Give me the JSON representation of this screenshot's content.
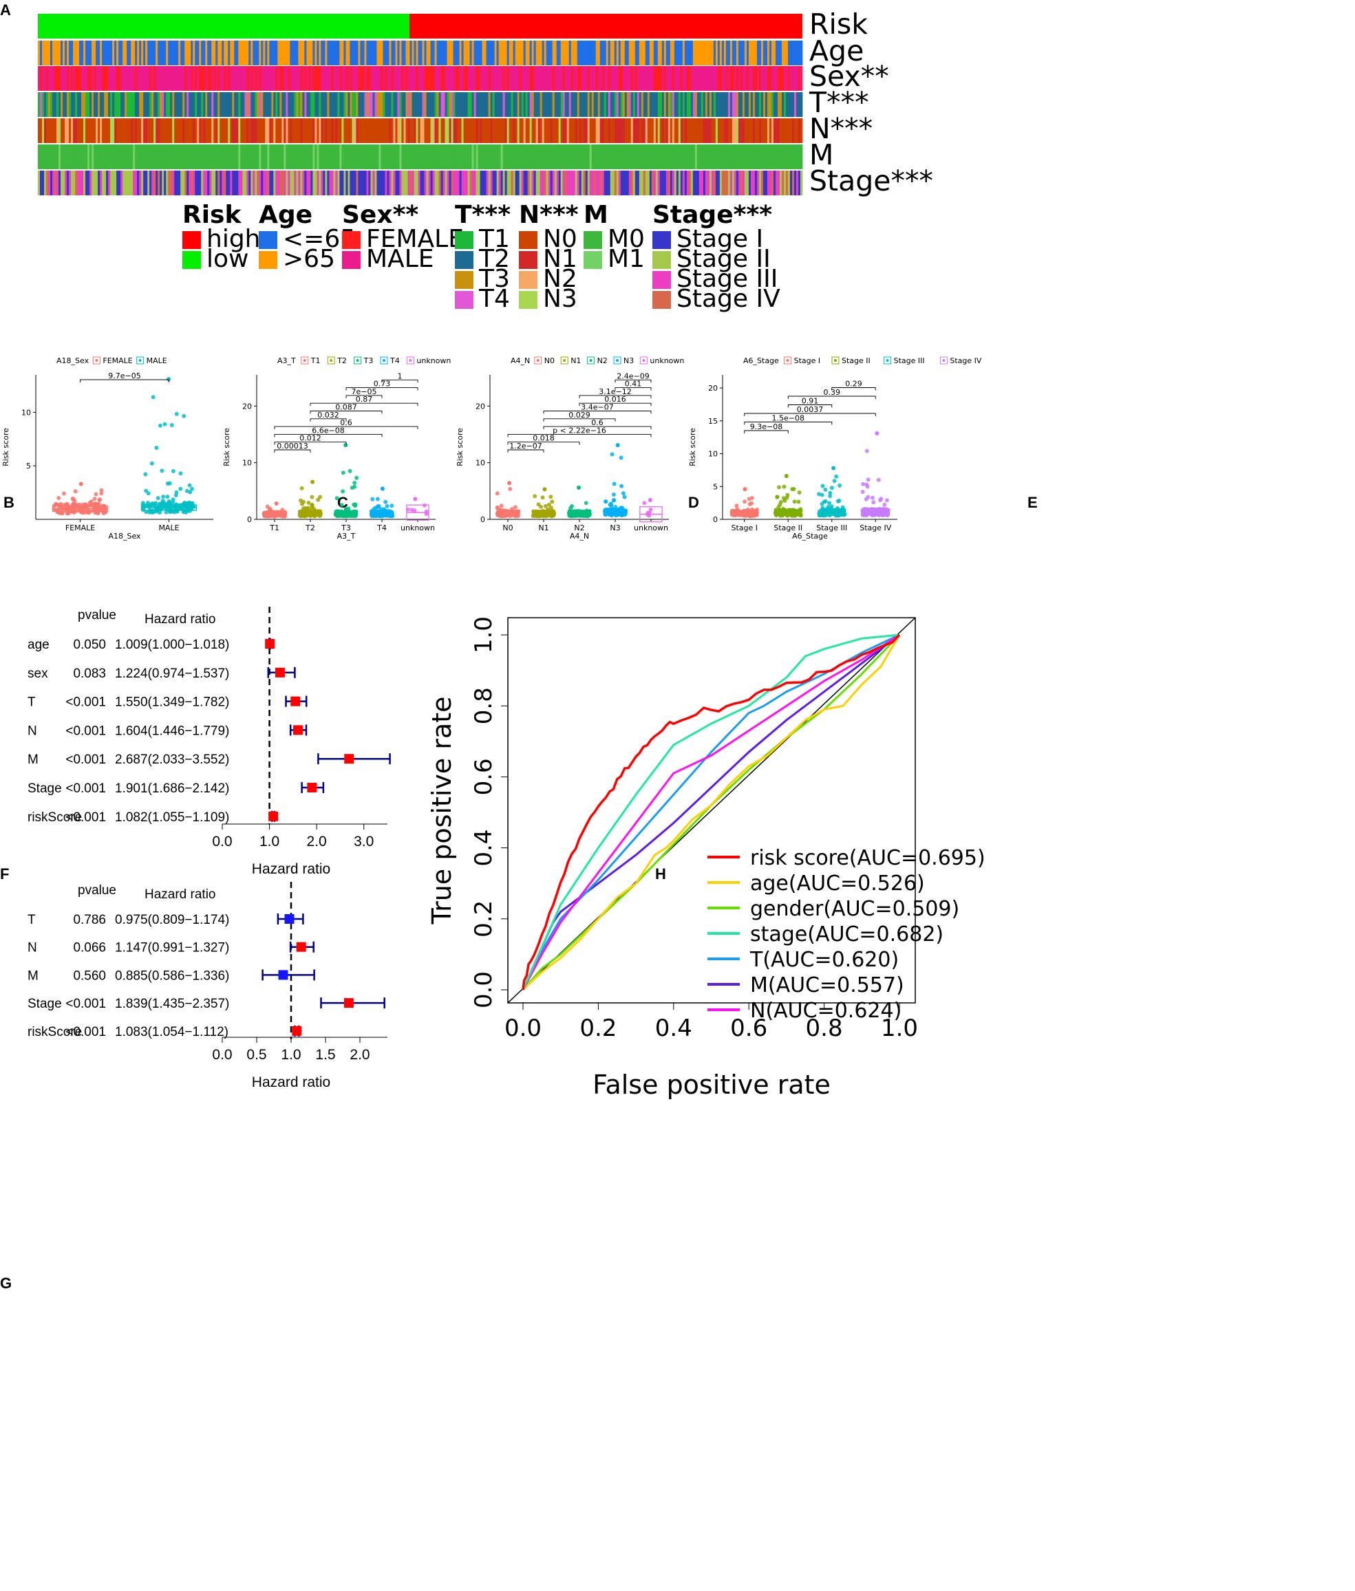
{
  "panels": {
    "A": "A",
    "B": "B",
    "C": "C",
    "D": "D",
    "E": "E",
    "F": "F",
    "G": "G",
    "H": "H"
  },
  "chart_data": [
    {
      "type": "heatmap",
      "panel": "A",
      "rows": [
        {
          "label": "Risk",
          "categories": [
            "high",
            "low"
          ]
        },
        {
          "label": "Age",
          "categories": [
            "<=65",
            ">65"
          ]
        },
        {
          "label": "Sex**",
          "categories": [
            "FEMALE",
            "MALE"
          ]
        },
        {
          "label": "T***",
          "categories": [
            "T1",
            "T2",
            "T3",
            "T4"
          ]
        },
        {
          "label": "N***",
          "categories": [
            "N0",
            "N1",
            "N2",
            "N3"
          ]
        },
        {
          "label": "M",
          "categories": [
            "M0",
            "M1"
          ]
        },
        {
          "label": "Stage***",
          "categories": [
            "Stage I",
            "Stage II",
            "Stage III",
            "Stage IV"
          ]
        }
      ],
      "low_fraction": 0.486,
      "legend": [
        {
          "title": "Risk",
          "items": [
            {
              "label": "high",
              "color": "#ff0000"
            },
            {
              "label": "low",
              "color": "#00ee00"
            }
          ]
        },
        {
          "title": "Age",
          "items": [
            {
              "label": "<=65",
              "color": "#1e6fe8"
            },
            {
              "label": ">65",
              "color": "#ff9a00"
            }
          ]
        },
        {
          "title": "Sex**",
          "items": [
            {
              "label": "FEMALE",
              "color": "#ff1f1f"
            },
            {
              "label": "MALE",
              "color": "#ec1a8a"
            }
          ]
        },
        {
          "title": "T***",
          "items": [
            {
              "label": "T1",
              "color": "#1db83a"
            },
            {
              "label": "T2",
              "color": "#1d6a92"
            },
            {
              "label": "T3",
              "color": "#c8920e"
            },
            {
              "label": "T4",
              "color": "#e356d8"
            }
          ]
        },
        {
          "title": "N***",
          "items": [
            {
              "label": "N0",
              "color": "#cc4400"
            },
            {
              "label": "N1",
              "color": "#d22828"
            },
            {
              "label": "N2",
              "color": "#f8a866"
            },
            {
              "label": "N3",
              "color": "#a8d850"
            }
          ]
        },
        {
          "title": "M",
          "items": [
            {
              "label": "M0",
              "color": "#3db83d"
            },
            {
              "label": "M1",
              "color": "#73d266"
            }
          ]
        },
        {
          "title": "Stage***",
          "items": [
            {
              "label": "Stage I",
              "color": "#3636c8"
            },
            {
              "label": "Stage II",
              "color": "#a4c84a"
            },
            {
              "label": "Stage III",
              "color": "#ec3ec0"
            },
            {
              "label": "Stage IV",
              "color": "#d8684c"
            }
          ]
        }
      ]
    },
    {
      "type": "box",
      "panel": "B",
      "legend_title": "A18_Sex",
      "categories": [
        "FEMALE",
        "MALE"
      ],
      "colors": [
        "#f8766d",
        "#00bfc4"
      ],
      "xlabel": "A18_Sex",
      "ylabel": "Risk score",
      "ylim": [
        0,
        13.5
      ],
      "yticks": [
        5,
        10
      ],
      "medians": [
        1.0,
        1.1
      ],
      "max_points": [
        3.3,
        13.1
      ],
      "comparisons": [
        {
          "from": 0,
          "to": 1,
          "p": "9.7e−05"
        }
      ]
    },
    {
      "type": "box",
      "panel": "C",
      "legend_title": "A3_T",
      "categories": [
        "T1",
        "T2",
        "T3",
        "T4",
        "unknown"
      ],
      "colors": [
        "#f8766d",
        "#a3a500",
        "#00bf7d",
        "#00b0f6",
        "#e76bf3"
      ],
      "xlabel": "A3_T",
      "ylabel": "Risk score",
      "ylim": [
        0,
        25.5
      ],
      "yticks": [
        0,
        10,
        20
      ],
      "medians": [
        0.9,
        1.0,
        1.0,
        1.0,
        1.2
      ],
      "max_points": [
        2.8,
        6.6,
        13.1,
        5.4,
        3.6
      ],
      "comparisons": [
        {
          "from": 0,
          "to": 1,
          "p": "0.00013"
        },
        {
          "from": 0,
          "to": 2,
          "p": "0.012"
        },
        {
          "from": 0,
          "to": 3,
          "p": "6.6e−08"
        },
        {
          "from": 0,
          "to": 4,
          "p": "0.6"
        },
        {
          "from": 1,
          "to": 2,
          "p": "0.032"
        },
        {
          "from": 1,
          "to": 3,
          "p": "0.087"
        },
        {
          "from": 1,
          "to": 4,
          "p": "0.87"
        },
        {
          "from": 2,
          "to": 3,
          "p": "7e−05"
        },
        {
          "from": 2,
          "to": 4,
          "p": "0.73"
        },
        {
          "from": 3,
          "to": 4,
          "p": "1"
        }
      ]
    },
    {
      "type": "box",
      "panel": "D",
      "legend_title": "A4_N",
      "categories": [
        "N0",
        "N1",
        "N2",
        "N3",
        "unknown"
      ],
      "colors": [
        "#f8766d",
        "#a3a500",
        "#00bf7d",
        "#00b0f6",
        "#e76bf3"
      ],
      "xlabel": "A4_N",
      "ylabel": "Risk score",
      "ylim": [
        0,
        25.5
      ],
      "yticks": [
        0,
        10,
        20
      ],
      "medians": [
        1.0,
        1.0,
        1.0,
        1.2,
        0.9
      ],
      "max_points": [
        6.4,
        5.3,
        5.6,
        13.1,
        3.4
      ],
      "comparisons": [
        {
          "from": 0,
          "to": 1,
          "p": "1.2e−07"
        },
        {
          "from": 0,
          "to": 2,
          "p": "0.018"
        },
        {
          "from": 0,
          "to": 4,
          "p": "p < 2.22e−16"
        },
        {
          "from": 1,
          "to": 4,
          "p": "0.6"
        },
        {
          "from": 1,
          "to": 3,
          "p": "0.029"
        },
        {
          "from": 1,
          "to": 4,
          "p": "3.4e−07"
        },
        {
          "from": 2,
          "to": 4,
          "p": "0.016"
        },
        {
          "from": 2,
          "to": 4,
          "p": "3.1e−12"
        },
        {
          "from": 3,
          "to": 4,
          "p": "0.41"
        },
        {
          "from": 3,
          "to": 4,
          "p": "2.4e−09"
        }
      ]
    },
    {
      "type": "box",
      "panel": "E",
      "legend_title": "A6_Stage",
      "categories": [
        "Stage I",
        "Stage II",
        "Stage III",
        "Stage IV"
      ],
      "colors": [
        "#f8766d",
        "#7cae00",
        "#00bfc4",
        "#c77cff"
      ],
      "xlabel": "A6_Stage",
      "ylabel": "Risk score",
      "ylim": [
        0,
        22
      ],
      "yticks": [
        0,
        5,
        10,
        15,
        20
      ],
      "medians": [
        0.9,
        1.0,
        1.0,
        1.1
      ],
      "max_points": [
        4.6,
        6.6,
        7.8,
        13.1
      ],
      "comparisons": [
        {
          "from": 0,
          "to": 1,
          "p": "9.3e−08"
        },
        {
          "from": 0,
          "to": 2,
          "p": "1.5e−08"
        },
        {
          "from": 0,
          "to": 3,
          "p": "0.0037"
        },
        {
          "from": 1,
          "to": 2,
          "p": "0.91"
        },
        {
          "from": 1,
          "to": 3,
          "p": "0.39"
        },
        {
          "from": 2,
          "to": 3,
          "p": "0.29"
        }
      ]
    },
    {
      "type": "forest",
      "panel": "F",
      "header_pvalue": "pvalue",
      "header_hr": "Hazard ratio",
      "xlabel": "Hazard ratio",
      "xlim": [
        0,
        3.5
      ],
      "xticks": [
        "0.0",
        "1.0",
        "2.0",
        "3.0"
      ],
      "xtick_values": [
        0,
        1,
        2,
        3
      ],
      "ref_line": 1,
      "rows": [
        {
          "name": "age",
          "p": "0.050",
          "hr_text": "1.009(1.000−1.018)",
          "hr": 1.009,
          "lo": 1.0,
          "hi": 1.018
        },
        {
          "name": "sex",
          "p": "0.083",
          "hr_text": "1.224(0.974−1.537)",
          "hr": 1.224,
          "lo": 0.974,
          "hi": 1.537
        },
        {
          "name": "T",
          "p": "<0.001",
          "hr_text": "1.550(1.349−1.782)",
          "hr": 1.55,
          "lo": 1.349,
          "hi": 1.782
        },
        {
          "name": "N",
          "p": "<0.001",
          "hr_text": "1.604(1.446−1.779)",
          "hr": 1.604,
          "lo": 1.446,
          "hi": 1.779
        },
        {
          "name": "M",
          "p": "<0.001",
          "hr_text": "2.687(2.033−3.552)",
          "hr": 2.687,
          "lo": 2.033,
          "hi": 3.552
        },
        {
          "name": "Stage",
          "p": "<0.001",
          "hr_text": "1.901(1.686−2.142)",
          "hr": 1.901,
          "lo": 1.686,
          "hi": 2.142
        },
        {
          "name": "riskScore",
          "p": "<0.001",
          "hr_text": "1.082(1.055−1.109)",
          "hr": 1.082,
          "lo": 1.055,
          "hi": 1.109
        }
      ]
    },
    {
      "type": "forest",
      "panel": "G",
      "header_pvalue": "pvalue",
      "header_hr": "Hazard ratio",
      "xlabel": "Hazard ratio",
      "xlim": [
        0,
        2.4
      ],
      "xticks": [
        "0.0",
        "0.5",
        "1.0",
        "1.5",
        "2.0"
      ],
      "xtick_values": [
        0,
        0.5,
        1,
        1.5,
        2
      ],
      "ref_line": 1,
      "rows": [
        {
          "name": "T",
          "p": "0.786",
          "hr_text": "0.975(0.809−1.174)",
          "hr": 0.975,
          "lo": 0.809,
          "hi": 1.174
        },
        {
          "name": "N",
          "p": "0.066",
          "hr_text": "1.147(0.991−1.327)",
          "hr": 1.147,
          "lo": 0.991,
          "hi": 1.327
        },
        {
          "name": "M",
          "p": "0.560",
          "hr_text": "0.885(0.586−1.336)",
          "hr": 0.885,
          "lo": 0.586,
          "hi": 1.336
        },
        {
          "name": "Stage",
          "p": "<0.001",
          "hr_text": "1.839(1.435−2.357)",
          "hr": 1.839,
          "lo": 1.435,
          "hi": 2.357
        },
        {
          "name": "riskScore",
          "p": "<0.001",
          "hr_text": "1.083(1.054−1.112)",
          "hr": 1.083,
          "lo": 1.054,
          "hi": 1.112
        }
      ]
    },
    {
      "type": "line",
      "panel": "H",
      "xlabel": "False positive rate",
      "ylabel": "True positive rate",
      "xlim": [
        0,
        1
      ],
      "ylim": [
        0,
        1
      ],
      "ticks": [
        "0.0",
        "0.2",
        "0.4",
        "0.6",
        "0.8",
        "1.0"
      ],
      "tick_values": [
        0,
        0.2,
        0.4,
        0.6,
        0.8,
        1.0
      ],
      "series": [
        {
          "name": "risk score(AUC=0.695)",
          "color": "#ff0000",
          "x": [
            0,
            0.003,
            0.01,
            0.015,
            0.02,
            0.03,
            0.04,
            0.05,
            0.06,
            0.07,
            0.08,
            0.09,
            0.1,
            0.11,
            0.12,
            0.13,
            0.14,
            0.15,
            0.16,
            0.17,
            0.18,
            0.19,
            0.2,
            0.21,
            0.22,
            0.23,
            0.24,
            0.25,
            0.26,
            0.27,
            0.28,
            0.29,
            0.3,
            0.31,
            0.32,
            0.33,
            0.34,
            0.35,
            0.36,
            0.37,
            0.38,
            0.39,
            0.4,
            0.41,
            0.42,
            0.44,
            0.46,
            0.48,
            0.5,
            0.52,
            0.54,
            0.56,
            0.58,
            0.6,
            0.62,
            0.64,
            0.66,
            0.68,
            0.7,
            0.72,
            0.74,
            0.76,
            0.78,
            0.8,
            0.82,
            0.84,
            0.86,
            0.88,
            0.9,
            0.92,
            0.94,
            0.96,
            0.98,
            1.0
          ],
          "y": [
            0,
            0.02,
            0.04,
            0.07,
            0.08,
            0.1,
            0.13,
            0.15,
            0.18,
            0.21,
            0.24,
            0.27,
            0.3,
            0.33,
            0.36,
            0.38,
            0.4,
            0.43,
            0.45,
            0.47,
            0.49,
            0.5,
            0.52,
            0.53,
            0.54,
            0.56,
            0.57,
            0.59,
            0.6,
            0.62,
            0.63,
            0.64,
            0.66,
            0.67,
            0.68,
            0.69,
            0.7,
            0.71,
            0.72,
            0.73,
            0.74,
            0.75,
            0.75,
            0.76,
            0.76,
            0.77,
            0.78,
            0.79,
            0.79,
            0.79,
            0.8,
            0.8,
            0.81,
            0.82,
            0.83,
            0.84,
            0.85,
            0.86,
            0.86,
            0.86,
            0.87,
            0.88,
            0.89,
            0.9,
            0.9,
            0.91,
            0.92,
            0.93,
            0.94,
            0.95,
            0.96,
            0.97,
            0.98,
            1.0
          ]
        },
        {
          "name": "age(AUC=0.526)",
          "color": "#ffd000",
          "x": [
            0,
            0.05,
            0.1,
            0.15,
            0.2,
            0.25,
            0.3,
            0.35,
            0.38,
            0.4,
            0.45,
            0.5,
            0.55,
            0.6,
            0.65,
            0.7,
            0.75,
            0.8,
            0.85,
            0.9,
            0.95,
            1.0
          ],
          "y": [
            0,
            0.05,
            0.09,
            0.14,
            0.2,
            0.26,
            0.3,
            0.38,
            0.4,
            0.42,
            0.48,
            0.52,
            0.58,
            0.63,
            0.66,
            0.71,
            0.76,
            0.79,
            0.8,
            0.86,
            0.91,
            1.0
          ]
        },
        {
          "name": "gender(AUC=0.509)",
          "color": "#66dd00",
          "x": [
            0,
            0.05,
            0.1,
            0.2,
            0.3,
            0.4,
            0.5,
            0.6,
            0.7,
            0.8,
            0.9,
            1.0
          ],
          "y": [
            0,
            0.06,
            0.1,
            0.2,
            0.3,
            0.41,
            0.52,
            0.62,
            0.71,
            0.79,
            0.89,
            1.0
          ]
        },
        {
          "name": "stage(AUC=0.682)",
          "color": "#20e8a0",
          "x": [
            0,
            0.05,
            0.1,
            0.2,
            0.3,
            0.4,
            0.5,
            0.6,
            0.7,
            0.75,
            0.8,
            0.9,
            1.0
          ],
          "y": [
            0,
            0.12,
            0.24,
            0.4,
            0.55,
            0.69,
            0.75,
            0.8,
            0.88,
            0.94,
            0.96,
            0.99,
            1.0
          ]
        },
        {
          "name": "T(AUC=0.620)",
          "color": "#1a9cf0",
          "x": [
            0,
            0.05,
            0.1,
            0.2,
            0.3,
            0.4,
            0.5,
            0.6,
            0.64,
            0.7,
            0.8,
            0.9,
            1.0
          ],
          "y": [
            0,
            0.11,
            0.2,
            0.31,
            0.43,
            0.55,
            0.67,
            0.78,
            0.8,
            0.84,
            0.89,
            0.95,
            1.0
          ]
        },
        {
          "name": "M(AUC=0.557)",
          "color": "#5a1ee6",
          "x": [
            0,
            0.05,
            0.08,
            0.1,
            0.2,
            0.3,
            0.4,
            0.5,
            0.6,
            0.7,
            0.8,
            0.9,
            1.0
          ],
          "y": [
            0,
            0.12,
            0.19,
            0.22,
            0.3,
            0.38,
            0.47,
            0.57,
            0.67,
            0.76,
            0.84,
            0.92,
            1.0
          ]
        },
        {
          "name": "N(AUC=0.624)",
          "color": "#ff10ee",
          "x": [
            0,
            0.05,
            0.1,
            0.2,
            0.3,
            0.4,
            0.5,
            0.6,
            0.7,
            0.8,
            0.9,
            1.0
          ],
          "y": [
            0,
            0.1,
            0.19,
            0.33,
            0.47,
            0.61,
            0.66,
            0.73,
            0.8,
            0.87,
            0.93,
            1.0
          ]
        }
      ]
    }
  ]
}
